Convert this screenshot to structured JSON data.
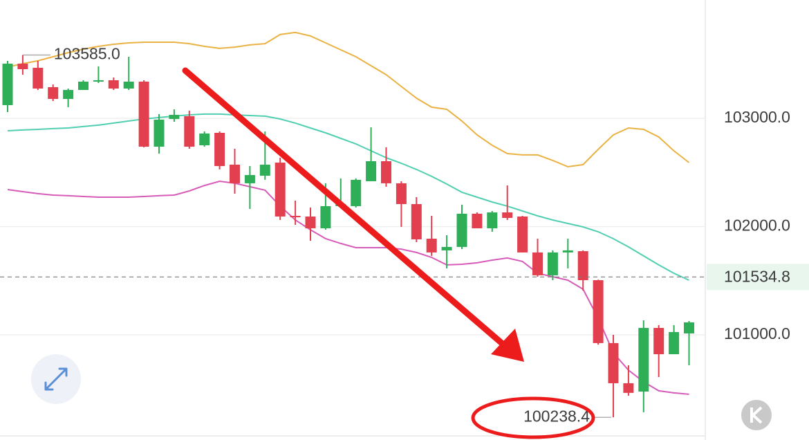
{
  "chart_data": {
    "type": "candlestick",
    "open": [
      103122,
      103505,
      103467,
      103288,
      103179,
      103262,
      103339,
      103352,
      103275,
      103339,
      102738,
      102994,
      103020,
      102751,
      102866,
      102572,
      102400,
      102470,
      102591,
      102099,
      102093,
      101984,
      102189,
      102189,
      102419,
      102604,
      102400,
      102208,
      101888,
      101780,
      101812,
      102119,
      101984,
      102131,
      102093,
      101761,
      101550,
      101761,
      101773,
      101505,
      100924,
      100553,
      100476,
      101064,
      100821,
      101013
    ],
    "high": [
      103531,
      103585.0,
      103531,
      103313,
      103275,
      103352,
      103480,
      103377,
      103569,
      103352,
      103039,
      103083,
      103071,
      102879,
      102879,
      102719,
      102559,
      102879,
      102636,
      102240,
      102176,
      102400,
      102445,
      102445,
      102917,
      102732,
      102419,
      102272,
      102099,
      101920,
      102202,
      102131,
      102144,
      102380,
      102099,
      101888,
      101780,
      101888,
      101780,
      101510,
      101000,
      100719,
      101134,
      101090,
      101090,
      101128
    ],
    "low": [
      103058,
      103403,
      103262,
      103160,
      103103,
      103262,
      103326,
      103262,
      103262,
      102732,
      102674,
      102968,
      102719,
      102738,
      102528,
      102304,
      102163,
      102432,
      102061,
      102016,
      101869,
      101971,
      102176,
      102176,
      102419,
      102368,
      101997,
      101856,
      101729,
      101614,
      101792,
      101984,
      101952,
      102061,
      101761,
      101537,
      101505,
      101614,
      101409,
      100910,
      100238.4,
      100438,
      100285,
      100610,
      100821,
      100719
    ],
    "close": [
      103505,
      103454,
      103275,
      103179,
      103262,
      103339,
      103352,
      103275,
      103339,
      102738,
      102988,
      103032,
      102738,
      102860,
      102559,
      102400,
      102476,
      102572,
      102093,
      102087,
      101984,
      102189,
      102208,
      102432,
      102604,
      102400,
      102208,
      101882,
      101761,
      101812,
      102119,
      101984,
      102131,
      102080,
      101761,
      101550,
      101761,
      101780,
      101505,
      100924,
      100553,
      100464,
      101064,
      100821,
      101026,
      101115
    ],
    "up_color": "#2fae58",
    "down_color": "#e2404f",
    "overlays": [
      {
        "color": "#eab243",
        "values": [
          103473,
          103505,
          103531,
          103569,
          103607,
          103639,
          103665,
          103684,
          103697,
          103703,
          103703,
          103703,
          103690,
          103665,
          103646,
          103658,
          103678,
          103690,
          103774,
          103793,
          103761,
          103697,
          103633,
          103569,
          103486,
          103403,
          103294,
          103186,
          103103,
          103083,
          102975,
          102847,
          102751,
          102674,
          102662,
          102662,
          102611,
          102553,
          102572,
          102713,
          102847,
          102911,
          102898,
          102828,
          102700,
          102591
        ]
      },
      {
        "color": "#4fcfb0",
        "values": [
          102885,
          102892,
          102898,
          102905,
          102911,
          102924,
          102937,
          102956,
          102975,
          102994,
          103007,
          103020,
          103032,
          103039,
          103039,
          103032,
          103026,
          103020,
          102994,
          102956,
          102911,
          102866,
          102815,
          102764,
          102700,
          102636,
          102585,
          102528,
          102464,
          102393,
          102317,
          102272,
          102227,
          102189,
          102144,
          102099,
          102061,
          102029,
          101997,
          101952,
          101888,
          101812,
          101729,
          101646,
          101569,
          101505
        ]
      },
      {
        "color": "#d75bb8",
        "values": [
          102342,
          102323,
          102304,
          102291,
          102285,
          102278,
          102272,
          102272,
          102272,
          102278,
          102285,
          102291,
          102329,
          102380,
          102419,
          102400,
          102368,
          102336,
          102189,
          102061,
          101971,
          101888,
          101844,
          101805,
          101805,
          101805,
          101792,
          101761,
          101716,
          101646,
          101652,
          101665,
          101690,
          101710,
          101678,
          101569,
          101537,
          101505,
          101422,
          101154,
          100834,
          100674,
          100566,
          100483,
          100464,
          100451
        ]
      }
    ],
    "ylim": [
      100067,
      104093
    ],
    "yticks": [
      {
        "value": 101000,
        "label": "101000.0"
      },
      {
        "value": 102000,
        "label": "102000.0"
      },
      {
        "value": 103000,
        "label": "103000.0"
      }
    ],
    "grid": true,
    "price_line": {
      "value": 101534.8,
      "color": "#34a853"
    },
    "high_label": {
      "value": 103585.0,
      "label": "103585.0"
    },
    "low_label": {
      "value": 100238.4,
      "label": "100238.4"
    }
  }
}
